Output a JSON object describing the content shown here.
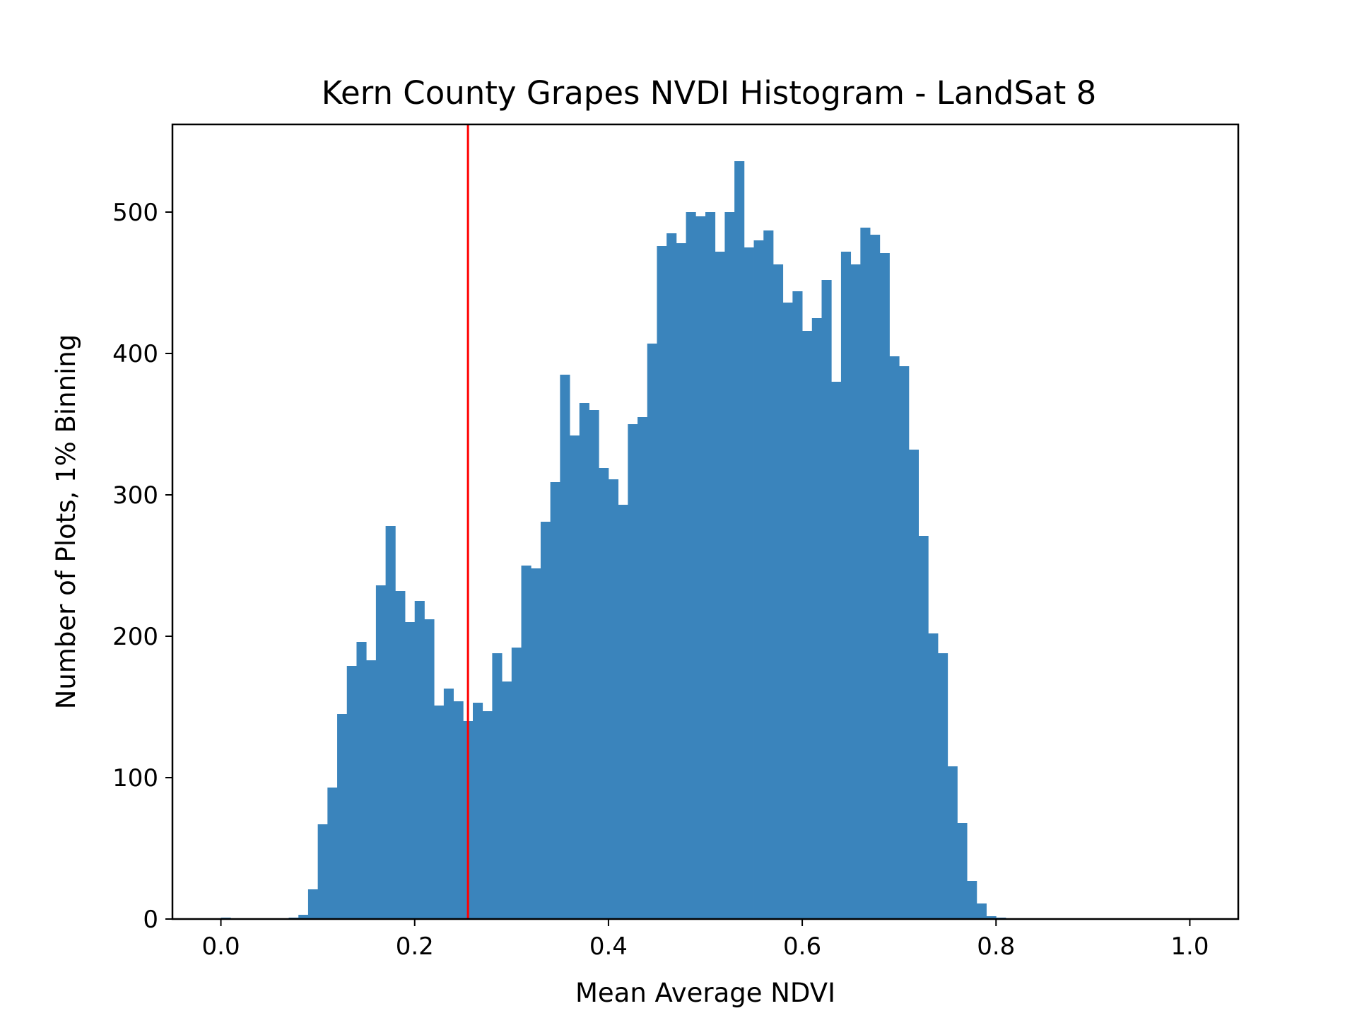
{
  "chart_data": {
    "type": "bar",
    "title": "Kern County Grapes NVDI Histogram - LandSat 8",
    "xlabel": "Mean Average NDVI",
    "ylabel": "Number of Plots, 1% Binning",
    "xlim": [
      -0.05,
      1.05
    ],
    "ylim": [
      0,
      562
    ],
    "x_ticks": [
      "0.0",
      "0.2",
      "0.4",
      "0.6",
      "0.8",
      "1.0"
    ],
    "x_tick_values": [
      0.0,
      0.2,
      0.4,
      0.6,
      0.8,
      1.0
    ],
    "y_ticks": [
      "0",
      "100",
      "200",
      "300",
      "400",
      "500"
    ],
    "y_tick_values": [
      0,
      100,
      200,
      300,
      400,
      500
    ],
    "bin_width": 0.01,
    "bin_start": 0.0,
    "bar_color": "#3a84bc",
    "grid": false,
    "values": [
      1,
      0,
      0,
      0,
      0,
      0,
      0,
      1,
      3,
      21,
      67,
      93,
      145,
      179,
      196,
      183,
      236,
      278,
      232,
      210,
      225,
      212,
      151,
      163,
      154,
      140,
      153,
      147,
      188,
      168,
      192,
      250,
      248,
      281,
      309,
      385,
      342,
      365,
      360,
      319,
      311,
      293,
      350,
      355,
      407,
      476,
      485,
      478,
      500,
      497,
      500,
      472,
      500,
      536,
      475,
      480,
      487,
      463,
      436,
      444,
      416,
      425,
      452,
      380,
      472,
      463,
      489,
      484,
      471,
      398,
      391,
      332,
      271,
      202,
      188,
      108,
      68,
      27,
      11,
      2,
      1,
      0,
      0,
      0,
      0,
      0,
      0,
      0,
      0,
      0,
      0,
      0,
      0,
      0,
      0,
      0,
      0,
      0,
      0,
      0
    ],
    "vline": {
      "x": 0.255,
      "color": "#ff0000"
    }
  }
}
